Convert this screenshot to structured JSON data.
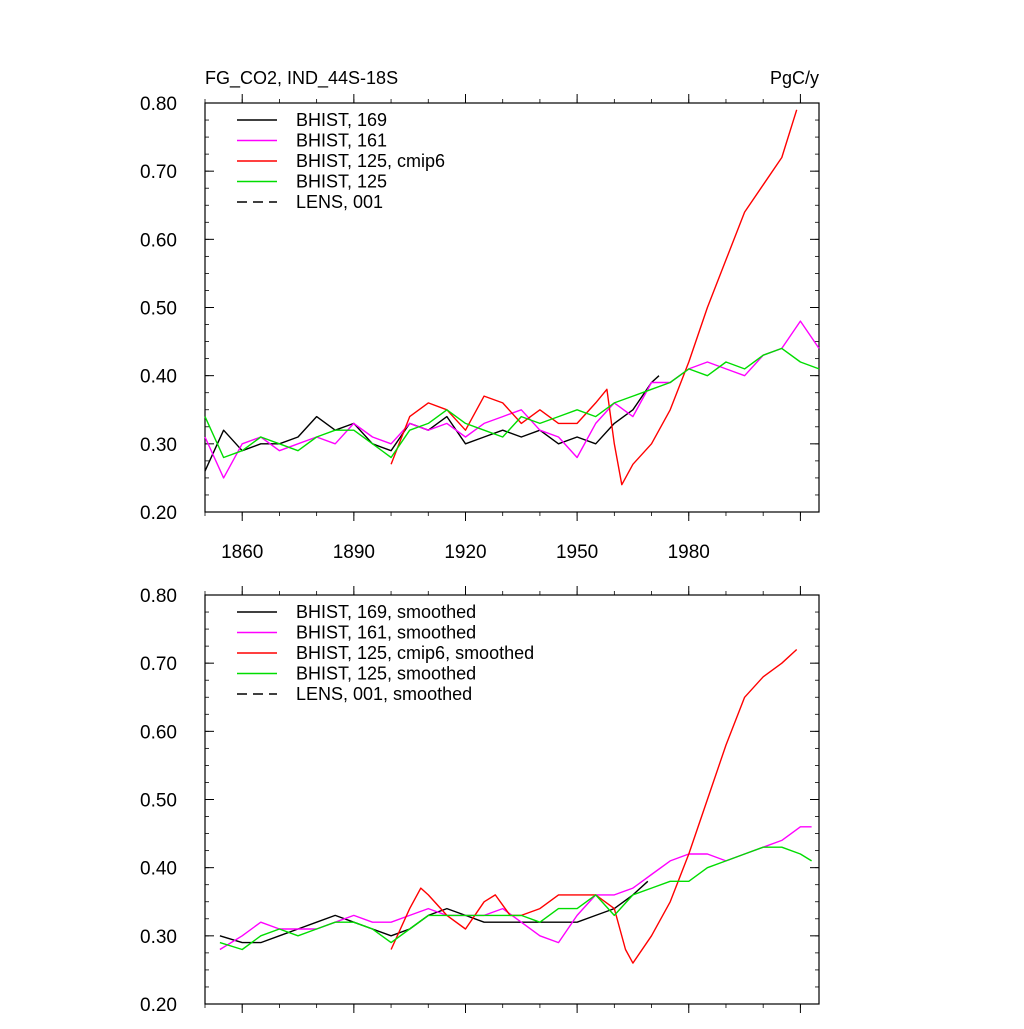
{
  "figure": {
    "title_left": "FG_CO2, IND_44S-18S",
    "title_right": "PgC/y"
  },
  "chart_data": [
    {
      "type": "line",
      "panel": "top",
      "title": "FG_CO2, IND_44S-18S",
      "units": "PgC/y",
      "xlim": [
        1850,
        2015
      ],
      "ylim": [
        0.2,
        0.8
      ],
      "x_ticks": [
        1860,
        1890,
        1920,
        1950,
        1980
      ],
      "y_ticks": [
        0.2,
        0.3,
        0.4,
        0.5,
        0.6,
        0.7,
        0.8
      ],
      "y_tick_labels": [
        "0.20",
        "0.30",
        "0.40",
        "0.50",
        "0.60",
        "0.70",
        "0.80"
      ],
      "legend_position": "top-left",
      "grid": false,
      "series": [
        {
          "name": "BHIST, 169",
          "color": "#000000",
          "dash": "solid",
          "x": [
            1850,
            1855,
            1860,
            1865,
            1870,
            1875,
            1880,
            1885,
            1890,
            1895,
            1900,
            1905,
            1910,
            1915,
            1920,
            1925,
            1930,
            1935,
            1940,
            1945,
            1950,
            1955,
            1960,
            1965,
            1970,
            1972
          ],
          "y": [
            0.26,
            0.32,
            0.29,
            0.3,
            0.3,
            0.31,
            0.34,
            0.32,
            0.33,
            0.3,
            0.29,
            0.33,
            0.32,
            0.34,
            0.3,
            0.31,
            0.32,
            0.31,
            0.32,
            0.3,
            0.31,
            0.3,
            0.33,
            0.35,
            0.39,
            0.4
          ]
        },
        {
          "name": "BHIST, 161",
          "color": "#ff00ff",
          "dash": "solid",
          "x": [
            1850,
            1855,
            1860,
            1865,
            1870,
            1875,
            1880,
            1885,
            1890,
            1895,
            1900,
            1905,
            1910,
            1915,
            1920,
            1925,
            1930,
            1935,
            1940,
            1945,
            1950,
            1955,
            1960,
            1965,
            1970,
            1975,
            1980,
            1985,
            1990,
            1995,
            2000,
            2005,
            2010,
            2015
          ],
          "y": [
            0.31,
            0.25,
            0.3,
            0.31,
            0.29,
            0.3,
            0.31,
            0.3,
            0.33,
            0.31,
            0.3,
            0.33,
            0.32,
            0.33,
            0.31,
            0.33,
            0.34,
            0.35,
            0.32,
            0.31,
            0.28,
            0.33,
            0.36,
            0.34,
            0.39,
            0.39,
            0.41,
            0.42,
            0.41,
            0.4,
            0.43,
            0.44,
            0.48,
            0.44
          ]
        },
        {
          "name": "BHIST, 125, cmip6",
          "color": "#ff0000",
          "dash": "solid",
          "x": [
            1900,
            1905,
            1910,
            1915,
            1920,
            1925,
            1930,
            1935,
            1940,
            1945,
            1950,
            1955,
            1958,
            1960,
            1962,
            1965,
            1970,
            1975,
            1980,
            1985,
            1990,
            1995,
            2000,
            2005,
            2009
          ],
          "y": [
            0.27,
            0.34,
            0.36,
            0.35,
            0.32,
            0.37,
            0.36,
            0.33,
            0.35,
            0.33,
            0.33,
            0.36,
            0.38,
            0.3,
            0.24,
            0.27,
            0.3,
            0.35,
            0.42,
            0.5,
            0.57,
            0.64,
            0.68,
            0.72,
            0.79
          ]
        },
        {
          "name": "BHIST, 125",
          "color": "#00dd00",
          "dash": "solid",
          "x": [
            1850,
            1855,
            1860,
            1865,
            1870,
            1875,
            1880,
            1885,
            1890,
            1895,
            1900,
            1905,
            1910,
            1915,
            1920,
            1925,
            1930,
            1935,
            1940,
            1945,
            1950,
            1955,
            1960,
            1965,
            1970,
            1975,
            1980,
            1985,
            1990,
            1995,
            2000,
            2005,
            2010,
            2015
          ],
          "y": [
            0.34,
            0.28,
            0.29,
            0.31,
            0.3,
            0.29,
            0.31,
            0.32,
            0.32,
            0.3,
            0.28,
            0.32,
            0.33,
            0.35,
            0.33,
            0.32,
            0.31,
            0.34,
            0.33,
            0.34,
            0.35,
            0.34,
            0.36,
            0.37,
            0.38,
            0.39,
            0.41,
            0.4,
            0.42,
            0.41,
            0.43,
            0.44,
            0.42,
            0.41
          ]
        },
        {
          "name": "LENS, 001",
          "color": "#000000",
          "dash": "dashed",
          "x": [],
          "y": []
        }
      ]
    },
    {
      "type": "line",
      "panel": "bottom",
      "xlim": [
        1850,
        2015
      ],
      "ylim": [
        0.2,
        0.8
      ],
      "y_ticks": [
        0.2,
        0.3,
        0.4,
        0.5,
        0.6,
        0.7,
        0.8
      ],
      "y_tick_labels": [
        "0.20",
        "0.30",
        "0.40",
        "0.50",
        "0.60",
        "0.70",
        "0.80"
      ],
      "legend_position": "top-left",
      "grid": false,
      "series": [
        {
          "name": "BHIST, 169, smoothed",
          "color": "#000000",
          "dash": "solid",
          "x": [
            1854,
            1860,
            1865,
            1870,
            1875,
            1880,
            1885,
            1890,
            1895,
            1900,
            1905,
            1910,
            1915,
            1920,
            1925,
            1930,
            1935,
            1940,
            1945,
            1950,
            1955,
            1960,
            1965,
            1969
          ],
          "y": [
            0.3,
            0.29,
            0.29,
            0.3,
            0.31,
            0.32,
            0.33,
            0.32,
            0.31,
            0.3,
            0.31,
            0.33,
            0.34,
            0.33,
            0.32,
            0.32,
            0.32,
            0.32,
            0.32,
            0.32,
            0.33,
            0.34,
            0.36,
            0.38
          ]
        },
        {
          "name": "BHIST, 161, smoothed",
          "color": "#ff00ff",
          "dash": "solid",
          "x": [
            1854,
            1860,
            1865,
            1870,
            1875,
            1880,
            1885,
            1890,
            1895,
            1900,
            1905,
            1910,
            1915,
            1920,
            1925,
            1930,
            1935,
            1940,
            1945,
            1950,
            1955,
            1960,
            1965,
            1970,
            1975,
            1980,
            1985,
            1990,
            1995,
            2000,
            2005,
            2010,
            2013
          ],
          "y": [
            0.28,
            0.3,
            0.32,
            0.31,
            0.31,
            0.31,
            0.32,
            0.33,
            0.32,
            0.32,
            0.33,
            0.34,
            0.33,
            0.33,
            0.33,
            0.34,
            0.32,
            0.3,
            0.29,
            0.33,
            0.36,
            0.36,
            0.37,
            0.39,
            0.41,
            0.42,
            0.42,
            0.41,
            0.42,
            0.43,
            0.44,
            0.46,
            0.46
          ]
        },
        {
          "name": "BHIST, 125, cmip6, smoothed",
          "color": "#ff0000",
          "dash": "solid",
          "x": [
            1900,
            1905,
            1908,
            1910,
            1915,
            1920,
            1925,
            1928,
            1932,
            1935,
            1940,
            1945,
            1950,
            1955,
            1960,
            1963,
            1965,
            1970,
            1975,
            1980,
            1985,
            1990,
            1995,
            2000,
            2005,
            2009
          ],
          "y": [
            0.28,
            0.34,
            0.37,
            0.36,
            0.33,
            0.31,
            0.35,
            0.36,
            0.33,
            0.33,
            0.34,
            0.36,
            0.36,
            0.36,
            0.34,
            0.28,
            0.26,
            0.3,
            0.35,
            0.42,
            0.5,
            0.58,
            0.65,
            0.68,
            0.7,
            0.72
          ]
        },
        {
          "name": "BHIST, 125, smoothed",
          "color": "#00dd00",
          "dash": "solid",
          "x": [
            1854,
            1860,
            1865,
            1870,
            1875,
            1880,
            1885,
            1890,
            1895,
            1900,
            1905,
            1910,
            1915,
            1920,
            1925,
            1930,
            1935,
            1940,
            1945,
            1950,
            1955,
            1960,
            1965,
            1970,
            1975,
            1980,
            1985,
            1990,
            1995,
            2000,
            2005,
            2010,
            2013
          ],
          "y": [
            0.29,
            0.28,
            0.3,
            0.31,
            0.3,
            0.31,
            0.32,
            0.32,
            0.31,
            0.29,
            0.31,
            0.33,
            0.33,
            0.33,
            0.33,
            0.33,
            0.33,
            0.32,
            0.34,
            0.34,
            0.36,
            0.33,
            0.36,
            0.37,
            0.38,
            0.38,
            0.4,
            0.41,
            0.42,
            0.43,
            0.43,
            0.42,
            0.41
          ]
        },
        {
          "name": "LENS, 001, smoothed",
          "color": "#000000",
          "dash": "dashed",
          "x": [],
          "y": []
        }
      ]
    }
  ]
}
